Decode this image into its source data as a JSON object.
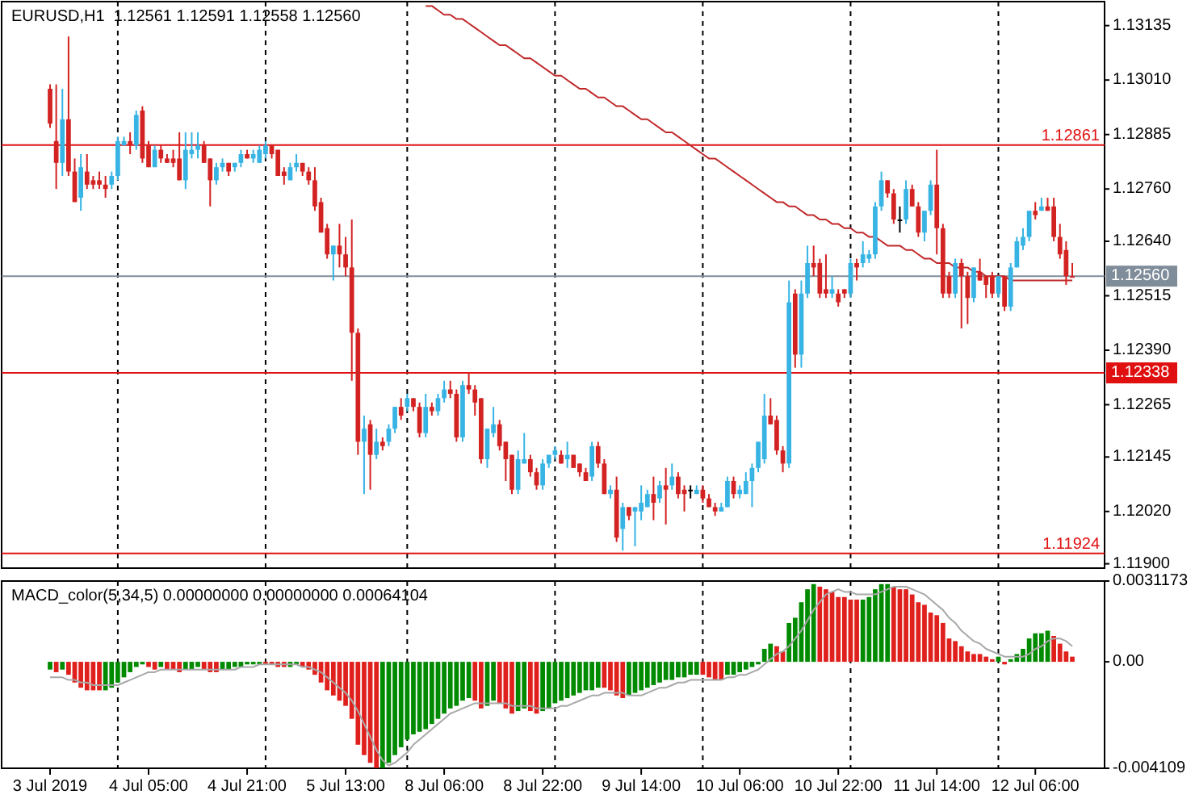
{
  "chart_data": [
    {
      "type": "candlestick",
      "title": "EURUSD,H1  1.12561 1.12591 1.12558 1.12560",
      "tick_labels": "y",
      "categories": [
        null,
        null,
        null,
        null,
        null,
        null,
        null,
        null,
        null,
        null,
        null,
        null,
        null,
        null,
        null,
        null,
        null,
        null,
        null,
        null,
        null,
        null,
        null,
        null,
        null,
        null,
        null,
        null,
        null,
        null,
        null,
        null,
        null,
        null,
        null,
        null,
        null,
        null,
        null,
        null,
        null,
        null,
        null,
        null,
        null,
        null,
        null,
        null,
        null,
        null,
        null,
        null,
        null,
        null,
        null,
        null,
        null,
        null,
        null,
        null,
        null,
        null,
        null,
        null,
        null,
        null,
        null,
        null,
        null,
        null,
        null,
        null,
        null,
        null,
        null,
        null,
        null,
        null,
        null,
        null,
        null,
        null,
        null,
        null,
        null,
        null,
        null,
        null,
        null,
        null,
        null,
        null,
        null,
        null,
        null,
        null,
        null,
        null,
        null,
        null,
        null,
        null,
        null,
        null,
        null,
        null,
        null,
        null,
        null,
        null,
        null,
        null,
        null,
        null,
        null,
        null,
        null,
        null,
        null,
        null,
        null,
        null,
        null,
        null,
        null,
        null,
        null,
        null,
        null,
        null,
        null,
        null,
        null,
        null,
        null,
        null,
        null,
        null,
        null,
        null,
        null,
        null,
        null,
        null,
        null,
        null,
        null,
        null,
        null,
        null,
        null,
        null,
        null,
        null,
        null,
        null,
        null,
        null,
        null,
        null,
        null,
        null,
        null,
        null,
        null,
        null,
        null
      ],
      "ohlc": [
        [
          1.1299,
          1.13,
          1.129,
          1.1291
        ],
        [
          1.1287,
          1.13,
          1.1276,
          1.1282
        ],
        [
          1.1282,
          1.1299,
          1.1279,
          1.1292
        ],
        [
          1.1292,
          1.1311,
          1.1279,
          1.128
        ],
        [
          1.128,
          1.1283,
          1.1273,
          1.1273
        ],
        [
          1.1274,
          1.1284,
          1.1271,
          1.1281
        ],
        [
          1.128,
          1.1284,
          1.1276,
          1.1277
        ],
        [
          1.1278,
          1.1279,
          1.1276,
          1.1277
        ],
        [
          1.1278,
          1.128,
          1.1276,
          1.1277
        ],
        [
          1.1277,
          1.1279,
          1.1274,
          1.1276
        ],
        [
          1.1277,
          1.128,
          1.1276,
          1.1279
        ],
        [
          1.1279,
          1.1288,
          1.1278,
          1.1287
        ],
        [
          1.1286,
          1.1288,
          1.1286,
          1.1287
        ],
        [
          1.1287,
          1.1289,
          1.1284,
          1.1286
        ],
        [
          1.1286,
          1.1294,
          1.1285,
          1.1293
        ],
        [
          1.1294,
          1.1295,
          1.1282,
          1.1283
        ],
        [
          1.1286,
          1.1287,
          1.1281,
          1.1281
        ],
        [
          1.1281,
          1.1286,
          1.1281,
          1.1285
        ],
        [
          1.1285,
          1.1286,
          1.1282,
          1.1283
        ],
        [
          1.1283,
          1.1284,
          1.1282,
          1.1282
        ],
        [
          1.1283,
          1.1285,
          1.1281,
          1.1282
        ],
        [
          1.1283,
          1.1289,
          1.1278,
          1.1278
        ],
        [
          1.1278,
          1.1289,
          1.1276,
          1.1285
        ],
        [
          1.1284,
          1.1289,
          1.1283,
          1.1285
        ],
        [
          1.1285,
          1.1289,
          1.1283,
          1.1286
        ],
        [
          1.1286,
          1.1287,
          1.1282,
          1.1282
        ],
        [
          1.1283,
          1.1283,
          1.1272,
          1.1278
        ],
        [
          1.1278,
          1.1282,
          1.1277,
          1.1281
        ],
        [
          1.1281,
          1.1283,
          1.128,
          1.1282
        ],
        [
          1.1282,
          1.1282,
          1.1279,
          1.128
        ],
        [
          1.1281,
          1.1282,
          1.128,
          1.1282
        ],
        [
          1.1282,
          1.1285,
          1.1281,
          1.1284
        ],
        [
          1.1284,
          1.1285,
          1.1283,
          1.1283
        ],
        [
          1.1283,
          1.1285,
          1.1282,
          1.1284
        ],
        [
          1.1282,
          1.1286,
          1.1282,
          1.1285
        ],
        [
          1.1284,
          1.1287,
          1.1283,
          1.1286
        ],
        [
          1.1286,
          1.1286,
          1.1283,
          1.1284
        ],
        [
          1.1285,
          1.1285,
          1.1279,
          1.1279
        ],
        [
          1.128,
          1.1281,
          1.1277,
          1.1279
        ],
        [
          1.1278,
          1.1282,
          1.1278,
          1.1281
        ],
        [
          1.1281,
          1.1284,
          1.128,
          1.1282
        ],
        [
          1.1282,
          1.1282,
          1.1279,
          1.128
        ],
        [
          1.128,
          1.1281,
          1.1277,
          1.1278
        ],
        [
          1.1278,
          1.1281,
          1.1271,
          1.1272
        ],
        [
          1.1273,
          1.1274,
          1.1266,
          1.1266
        ],
        [
          1.1267,
          1.1268,
          1.126,
          1.1261
        ],
        [
          1.1261,
          1.1263,
          1.1255,
          1.1263
        ],
        [
          1.1263,
          1.1268,
          1.1258,
          1.1261
        ],
        [
          1.1261,
          1.1265,
          1.1256,
          1.1258
        ],
        [
          1.1258,
          1.1269,
          1.1232,
          1.1243
        ],
        [
          1.1243,
          1.1244,
          1.1215,
          1.1218
        ],
        [
          1.1218,
          1.1224,
          1.1206,
          1.1221
        ],
        [
          1.1222,
          1.1223,
          1.1207,
          1.1215
        ],
        [
          1.1215,
          1.1221,
          1.1214,
          1.1218
        ],
        [
          1.1218,
          1.1219,
          1.1216,
          1.1217
        ],
        [
          1.1218,
          1.1222,
          1.1217,
          1.1221
        ],
        [
          1.1221,
          1.1226,
          1.122,
          1.1226
        ],
        [
          1.1226,
          1.1228,
          1.1223,
          1.1224
        ],
        [
          1.1226,
          1.1229,
          1.1225,
          1.1228
        ],
        [
          1.1228,
          1.1228,
          1.1225,
          1.1226
        ],
        [
          1.1226,
          1.1227,
          1.1219,
          1.122
        ],
        [
          1.122,
          1.1229,
          1.1219,
          1.1226
        ],
        [
          1.1226,
          1.1227,
          1.1224,
          1.1225
        ],
        [
          1.1225,
          1.1229,
          1.1224,
          1.1228
        ],
        [
          1.1228,
          1.1232,
          1.1227,
          1.123
        ],
        [
          1.123,
          1.1232,
          1.1228,
          1.1229
        ],
        [
          1.1229,
          1.123,
          1.1218,
          1.1219
        ],
        [
          1.1219,
          1.1232,
          1.1218,
          1.1231
        ],
        [
          1.1231,
          1.1234,
          1.1229,
          1.123
        ],
        [
          1.123,
          1.1231,
          1.1224,
          1.1227
        ],
        [
          1.1228,
          1.1228,
          1.1213,
          1.1214
        ],
        [
          1.1214,
          1.1221,
          1.1212,
          1.1221
        ],
        [
          1.122,
          1.1226,
          1.1219,
          1.1222
        ],
        [
          1.1222,
          1.1223,
          1.1216,
          1.1217
        ],
        [
          1.1218,
          1.1218,
          1.1209,
          1.1214
        ],
        [
          1.1215,
          1.1215,
          1.1206,
          1.1207
        ],
        [
          1.1207,
          1.1216,
          1.1206,
          1.1214
        ],
        [
          1.1213,
          1.122,
          1.1213,
          1.1214
        ],
        [
          1.1214,
          1.1215,
          1.121,
          1.1211
        ],
        [
          1.1211,
          1.1212,
          1.1207,
          1.1208
        ],
        [
          1.1208,
          1.1214,
          1.1207,
          1.1213
        ],
        [
          1.1213,
          1.1215,
          1.1212,
          1.1215
        ],
        [
          1.1215,
          1.1217,
          1.1214,
          1.1216
        ],
        [
          1.1215,
          1.1216,
          1.1213,
          1.1213
        ],
        [
          1.1214,
          1.1218,
          1.1212,
          1.1215
        ],
        [
          1.1215,
          1.1215,
          1.1212,
          1.1212
        ],
        [
          1.1213,
          1.1213,
          1.121,
          1.1211
        ],
        [
          1.1211,
          1.1212,
          1.1209,
          1.1209
        ],
        [
          1.121,
          1.1218,
          1.1209,
          1.1217
        ],
        [
          1.1217,
          1.1218,
          1.1212,
          1.1213
        ],
        [
          1.1213,
          1.1214,
          1.1206,
          1.1206
        ],
        [
          1.1206,
          1.1208,
          1.1205,
          1.1207
        ],
        [
          1.1207,
          1.121,
          1.1195,
          1.1196
        ],
        [
          1.1198,
          1.1204,
          1.1193,
          1.1203
        ],
        [
          1.1203,
          1.1203,
          1.12,
          1.1201
        ],
        [
          1.1202,
          1.1203,
          1.1194,
          1.1203
        ],
        [
          1.1202,
          1.1208,
          1.12,
          1.1204
        ],
        [
          1.1203,
          1.1207,
          1.1203,
          1.1206
        ],
        [
          1.1206,
          1.121,
          1.12,
          1.1204
        ],
        [
          1.1205,
          1.1209,
          1.1204,
          1.1208
        ],
        [
          1.1208,
          1.1212,
          1.1199,
          1.1207
        ],
        [
          1.1208,
          1.1213,
          1.1207,
          1.121
        ],
        [
          1.121,
          1.1211,
          1.1205,
          1.1206
        ],
        [
          1.1207,
          1.1208,
          1.1202,
          1.1206
        ],
        [
          1.1207,
          1.1208,
          1.1205,
          1.1207
        ],
        [
          1.1206,
          1.1208,
          1.1206,
          1.1207
        ],
        [
          1.1207,
          1.1208,
          1.1204,
          1.1205
        ],
        [
          1.1205,
          1.1206,
          1.1203,
          1.1203
        ],
        [
          1.1203,
          1.1204,
          1.1201,
          1.1202
        ],
        [
          1.1202,
          1.1204,
          1.1202,
          1.1203
        ],
        [
          1.1203,
          1.121,
          1.1203,
          1.1209
        ],
        [
          1.1209,
          1.121,
          1.1205,
          1.1206
        ],
        [
          1.1206,
          1.1208,
          1.1205,
          1.1207
        ],
        [
          1.1206,
          1.1211,
          1.1206,
          1.1209
        ],
        [
          1.1209,
          1.1213,
          1.1203,
          1.1212
        ],
        [
          1.1212,
          1.1218,
          1.1211,
          1.1218
        ],
        [
          1.1214,
          1.1229,
          1.1213,
          1.1224
        ],
        [
          1.1224,
          1.1228,
          1.1222,
          1.1222
        ],
        [
          1.1223,
          1.1224,
          1.1215,
          1.1216
        ],
        [
          1.1216,
          1.1217,
          1.1211,
          1.1213
        ],
        [
          1.1213,
          1.1255,
          1.1212,
          1.125
        ],
        [
          1.1252,
          1.1253,
          1.1235,
          1.1238
        ],
        [
          1.1238,
          1.1255,
          1.1235,
          1.1252
        ],
        [
          1.1252,
          1.1263,
          1.1251,
          1.1259
        ],
        [
          1.1259,
          1.1263,
          1.1256,
          1.1258
        ],
        [
          1.1259,
          1.126,
          1.1251,
          1.1252
        ],
        [
          1.1253,
          1.1261,
          1.1251,
          1.1252
        ],
        [
          1.1252,
          1.1256,
          1.1251,
          1.1253
        ],
        [
          1.1252,
          1.1253,
          1.1249,
          1.125
        ],
        [
          1.1253,
          1.1253,
          1.1251,
          1.1252
        ],
        [
          1.1252,
          1.126,
          1.1251,
          1.1259
        ],
        [
          1.1259,
          1.126,
          1.1255,
          1.1258
        ],
        [
          1.1259,
          1.1264,
          1.1258,
          1.1261
        ],
        [
          1.126,
          1.1262,
          1.1259,
          1.1261
        ],
        [
          1.1261,
          1.1273,
          1.126,
          1.1272
        ],
        [
          1.1272,
          1.128,
          1.1271,
          1.1278
        ],
        [
          1.1278,
          1.1278,
          1.1274,
          1.1275
        ],
        [
          1.1275,
          1.1276,
          1.1268,
          1.1269
        ],
        [
          1.1269,
          1.1272,
          1.1266,
          1.1269
        ],
        [
          1.1269,
          1.1278,
          1.1268,
          1.1276
        ],
        [
          1.1276,
          1.1277,
          1.1272,
          1.1272
        ],
        [
          1.1272,
          1.1273,
          1.1265,
          1.1266
        ],
        [
          1.1266,
          1.1271,
          1.1264,
          1.1271
        ],
        [
          1.1271,
          1.1278,
          1.127,
          1.1277
        ],
        [
          1.1277,
          1.1285,
          1.1261,
          1.1267
        ],
        [
          1.1267,
          1.1268,
          1.1251,
          1.1252
        ],
        [
          1.1256,
          1.1257,
          1.1251,
          1.1252
        ],
        [
          1.1252,
          1.126,
          1.1251,
          1.1259
        ],
        [
          1.1259,
          1.126,
          1.1244,
          1.1256
        ],
        [
          1.1256,
          1.1257,
          1.1245,
          1.1251
        ],
        [
          1.1251,
          1.1258,
          1.125,
          1.1258
        ],
        [
          1.1257,
          1.126,
          1.1255,
          1.1255
        ],
        [
          1.1256,
          1.1256,
          1.1251,
          1.1254
        ],
        [
          1.1256,
          1.1257,
          1.1251,
          1.1252
        ],
        [
          1.1252,
          1.1256,
          1.1251,
          1.1256
        ],
        [
          1.1256,
          1.1256,
          1.1248,
          1.1249
        ],
        [
          1.1249,
          1.1259,
          1.1248,
          1.1258
        ],
        [
          1.1258,
          1.1265,
          1.1258,
          1.1264
        ],
        [
          1.1263,
          1.1267,
          1.1262,
          1.1265
        ],
        [
          1.1265,
          1.1271,
          1.1264,
          1.1271
        ],
        [
          1.1271,
          1.1273,
          1.1269,
          1.127
        ],
        [
          1.1271,
          1.1274,
          1.1271,
          1.1272
        ],
        [
          1.1272,
          1.1274,
          1.1271,
          1.1271
        ],
        [
          1.1272,
          1.1274,
          1.1264,
          1.1265
        ],
        [
          1.1265,
          1.1268,
          1.126,
          1.1261
        ],
        [
          1.1262,
          1.1264,
          1.1254,
          1.1256
        ],
        [
          1.1256,
          1.1259,
          1.1256,
          1.1256
        ]
      ],
      "colors": [
        "#d32222",
        "#d32222",
        "#37b4e4",
        "#d32222",
        "#d32222",
        "#37b4e4",
        "#d32222",
        "#d32222",
        "#d32222",
        "#d32222",
        "#37b4e4",
        "#37b4e4",
        "#37b4e4",
        "#d32222",
        "#37b4e4",
        "#d32222",
        "#d32222",
        "#37b4e4",
        "#d32222",
        "#d32222",
        "#d32222",
        "#d32222",
        "#37b4e4",
        "#37b4e4",
        "#37b4e4",
        "#d32222",
        "#d32222",
        "#37b4e4",
        "#37b4e4",
        "#d32222",
        "#37b4e4",
        "#37b4e4",
        "#d32222",
        "#37b4e4",
        "#37b4e4",
        "#37b4e4",
        "#d32222",
        "#d32222",
        "#d32222",
        "#37b4e4",
        "#37b4e4",
        "#d32222",
        "#d32222",
        "#d32222",
        "#d32222",
        "#d32222",
        "#37b4e4",
        "#d32222",
        "#d32222",
        "#d32222",
        "#d32222",
        "#37b4e4",
        "#d32222",
        "#37b4e4",
        "#d32222",
        "#37b4e4",
        "#37b4e4",
        "#d32222",
        "#37b4e4",
        "#d32222",
        "#d32222",
        "#37b4e4",
        "#d32222",
        "#37b4e4",
        "#37b4e4",
        "#d32222",
        "#d32222",
        "#37b4e4",
        "#d32222",
        "#d32222",
        "#d32222",
        "#37b4e4",
        "#37b4e4",
        "#d32222",
        "#d32222",
        "#d32222",
        "#37b4e4",
        "#37b4e4",
        "#d32222",
        "#d32222",
        "#37b4e4",
        "#37b4e4",
        "#37b4e4",
        "#d32222",
        "#37b4e4",
        "#d32222",
        "#d32222",
        "#d32222",
        "#37b4e4",
        "#d32222",
        "#d32222",
        "#37b4e4",
        "#d32222",
        "#37b4e4",
        "#d32222",
        "#37b4e4",
        "#37b4e4",
        "#37b4e4",
        "#d32222",
        "#37b4e4",
        "#d32222",
        "#37b4e4",
        "#d32222",
        "#d32222",
        "#000000",
        "#37b4e4",
        "#d32222",
        "#d32222",
        "#d32222",
        "#37b4e4",
        "#37b4e4",
        "#d32222",
        "#37b4e4",
        "#37b4e4",
        "#37b4e4",
        "#37b4e4",
        "#37b4e4",
        "#d32222",
        "#d32222",
        "#d32222",
        "#37b4e4",
        "#d32222",
        "#37b4e4",
        "#37b4e4",
        "#d32222",
        "#d32222",
        "#d32222",
        "#37b4e4",
        "#d32222",
        "#d32222",
        "#37b4e4",
        "#d32222",
        "#37b4e4",
        "#37b4e4",
        "#37b4e4",
        "#37b4e4",
        "#d32222",
        "#d32222",
        "#000000",
        "#37b4e4",
        "#d32222",
        "#d32222",
        "#37b4e4",
        "#37b4e4",
        "#d32222",
        "#d32222",
        "#d32222",
        "#37b4e4",
        "#d32222",
        "#d32222",
        "#37b4e4",
        "#d32222",
        "#d32222",
        "#d32222",
        "#37b4e4",
        "#d32222",
        "#37b4e4",
        "#37b4e4",
        "#37b4e4",
        "#37b4e4",
        "#d32222",
        "#37b4e4",
        "#d32222",
        "#d32222",
        "#d32222",
        "#d32222",
        "#d32222"
      ],
      "series": [
        {
          "type": "line",
          "color": "#c0282a",
          "values": [
            null,
            null,
            null,
            null,
            null,
            null,
            null,
            null,
            null,
            null,
            null,
            null,
            null,
            null,
            null,
            null,
            null,
            null,
            null,
            null,
            null,
            null,
            null,
            null,
            null,
            null,
            null,
            null,
            null,
            null,
            null,
            null,
            null,
            null,
            null,
            null,
            null,
            null,
            null,
            null,
            null,
            null,
            null,
            null,
            null,
            null,
            null,
            null,
            null,
            null,
            null,
            null,
            null,
            null,
            null,
            null,
            null,
            null,
            null,
            null,
            null,
            1.1318,
            1.1318,
            1.1317,
            1.1316,
            1.1316,
            1.1315,
            1.1315,
            1.1314,
            1.1313,
            1.1312,
            1.1311,
            1.131,
            1.1309,
            1.1309,
            1.1308,
            1.1307,
            1.1306,
            1.1306,
            1.1305,
            1.1304,
            1.1303,
            1.1302,
            1.1302,
            1.1301,
            1.13,
            1.1299,
            1.1299,
            1.1298,
            1.1297,
            1.1297,
            1.1296,
            1.1295,
            1.1295,
            1.1294,
            1.1293,
            1.1292,
            1.1292,
            1.1291,
            1.129,
            1.1289,
            1.1289,
            1.1288,
            1.1287,
            1.1286,
            1.1285,
            1.1284,
            1.1283,
            1.1283,
            1.1282,
            1.1281,
            1.128,
            1.1279,
            1.1278,
            1.1277,
            1.1276,
            1.1275,
            1.1274,
            1.1273,
            1.1273,
            1.1272,
            1.1272,
            1.1271,
            1.127,
            1.127,
            1.1269,
            1.1269,
            1.1268,
            1.1268,
            1.1267,
            1.1267,
            1.1266,
            1.1266,
            1.1265,
            1.1265,
            1.1264,
            1.1263,
            1.1263,
            1.1263,
            1.1262,
            1.1262,
            1.1261,
            1.126,
            1.126,
            1.1259,
            1.1259,
            1.1259,
            1.1258,
            1.1258,
            1.1258,
            1.1257,
            1.1257,
            1.1256,
            1.1256,
            1.1256,
            1.1256,
            1.1255,
            1.1255,
            1.1255,
            1.1255,
            1.1255,
            1.1255,
            1.1255,
            1.1255,
            1.1255,
            1.1255,
            1.1255
          ]
        }
      ],
      "ylim": [
        1.1189,
        1.1319
      ],
      "yticks": [
        1.13135,
        {
          "value": 1.1301,
          "label": "1.13010"
        },
        1.12885,
        {
          "value": 1.1276,
          "label": "1.12760"
        },
        {
          "value": 1.1264,
          "label": "1.12640"
        },
        1.12515,
        {
          "value": 1.1239,
          "label": "1.12390"
        },
        1.12265,
        1.12145,
        {
          "value": 1.1202,
          "label": "1.12020"
        },
        {
          "value": 1.119,
          "label": "1.11900"
        }
      ],
      "ref_lines": [
        {
          "axis": "y",
          "value": 1.12861,
          "label": "1.12861",
          "color": "#e01010"
        },
        {
          "axis": "y",
          "value": 1.12338,
          "label": "1.12338",
          "color": "#e01010"
        },
        {
          "axis": "y",
          "value": 1.11924,
          "label": "1.11924",
          "color": "#e01010"
        },
        {
          "axis": "y",
          "value": 1.1256,
          "label": "1.12560",
          "color": "#7f8c99"
        }
      ]
    },
    {
      "type": "bar",
      "title": "MACD_color(5,34,5) 0.00000000 0.00000000 0.00064104",
      "categories": [
        "3 Jul 2019",
        null,
        null,
        null,
        null,
        null,
        null,
        null,
        null,
        null,
        null,
        null,
        null,
        null,
        null,
        null,
        "4 Jul 05:00",
        null,
        null,
        null,
        null,
        null,
        null,
        null,
        null,
        null,
        null,
        null,
        null,
        null,
        null,
        null,
        "4 Jul 21:00",
        null,
        null,
        null,
        null,
        null,
        null,
        null,
        null,
        null,
        null,
        null,
        null,
        null,
        null,
        null,
        "5 Jul 13:00",
        null,
        null,
        null,
        null,
        null,
        null,
        null,
        null,
        null,
        null,
        null,
        null,
        null,
        null,
        null,
        "8 Jul 06:00",
        null,
        null,
        null,
        null,
        null,
        null,
        null,
        null,
        null,
        null,
        null,
        null,
        null,
        null,
        null,
        "8 Jul 22:00",
        null,
        null,
        null,
        null,
        null,
        null,
        null,
        null,
        null,
        null,
        null,
        null,
        null,
        null,
        null,
        "9 Jul 14:00",
        null,
        null,
        null,
        null,
        null,
        null,
        null,
        null,
        null,
        null,
        null,
        null,
        null,
        null,
        null,
        "10 Jul 06:00",
        null,
        null,
        null,
        null,
        null,
        null,
        null,
        null,
        null,
        null,
        null,
        null,
        null,
        null,
        null,
        "10 Jul 22:00",
        null,
        null,
        null,
        null,
        null,
        null,
        null,
        null,
        null,
        null,
        null,
        null,
        null,
        null,
        null,
        "11 Jul 14:00",
        null,
        null,
        null,
        null,
        null,
        null,
        null,
        null,
        null,
        null,
        null,
        null,
        null,
        null,
        null,
        "12 Jul 06:00",
        null,
        null,
        null,
        null,
        null,
        null
      ],
      "series": [
        {
          "type": "bar",
          "values": [
            -0.0003,
            -0.0004,
            -0.0003,
            -0.0005,
            -0.0008,
            -0.001,
            -0.0011,
            -0.0011,
            -0.0011,
            -0.0011,
            -0.001,
            -0.0008,
            -0.0006,
            -0.0004,
            -0.0002,
            -0.0001,
            -0.0002,
            -0.0003,
            -0.0002,
            -0.0003,
            -0.0003,
            -0.0004,
            -0.0003,
            -0.0003,
            -0.0002,
            -0.0003,
            -0.0004,
            -0.0004,
            -0.0003,
            -0.0003,
            -0.0002,
            -0.0002,
            -0.0001,
            -0.0001,
            -0.0001,
            -0.0001,
            -0.0001,
            -0.0002,
            -0.0002,
            -0.0002,
            -0.0001,
            -0.0002,
            -0.0003,
            -0.0005,
            -0.0008,
            -0.0011,
            -0.0013,
            -0.0015,
            -0.0017,
            -0.0022,
            -0.0032,
            -0.0036,
            -0.0039,
            -0.0041,
            -0.0041,
            -0.0039,
            -0.0036,
            -0.0033,
            -0.003,
            -0.0028,
            -0.0027,
            -0.0026,
            -0.0024,
            -0.0022,
            -0.002,
            -0.0018,
            -0.0017,
            -0.0015,
            -0.0014,
            -0.0015,
            -0.0018,
            -0.0017,
            -0.0015,
            -0.0016,
            -0.0018,
            -0.002,
            -0.0019,
            -0.0018,
            -0.0019,
            -0.002,
            -0.0019,
            -0.0018,
            -0.0016,
            -0.0015,
            -0.0014,
            -0.0013,
            -0.0012,
            -0.0011,
            -0.0011,
            -0.001,
            -0.001,
            -0.0011,
            -0.0013,
            -0.0014,
            -0.0013,
            -0.0012,
            -0.0011,
            -0.001,
            -0.0009,
            -0.0008,
            -0.0007,
            -0.0007,
            -0.0006,
            -0.0006,
            -0.0005,
            -0.0005,
            -0.0005,
            -0.0006,
            -0.0007,
            -0.0007,
            -0.0005,
            -0.0005,
            -0.0004,
            -0.0003,
            -0.0002,
            -0.0001,
            0.0005,
            0.0007,
            0.0006,
            0.0004,
            0.0015,
            0.0017,
            0.0023,
            0.0028,
            0.003,
            0.0029,
            0.0028,
            0.0027,
            0.0025,
            0.0025,
            0.0024,
            0.0024,
            0.0024,
            0.0025,
            0.0028,
            0.003,
            0.003,
            0.0029,
            0.0028,
            0.0028,
            0.0026,
            0.0023,
            0.0022,
            0.0019,
            0.0018,
            0.0015,
            0.0009,
            0.0008,
            0.0006,
            0.0004,
            0.0003,
            0.0003,
            0.0002,
            0.0001,
            0.0002,
            -0.0001,
            0.0001,
            0.0003,
            0.0005,
            0.0009,
            0.0011,
            0.0011,
            0.0012,
            0.001,
            0.0007,
            0.0004,
            0.0002
          ],
          "colors": [
            "#008a00",
            "#e0201c",
            "#008a00",
            "#e0201c",
            "#e0201c",
            "#e0201c",
            "#e0201c",
            "#e0201c",
            "#e0201c",
            "#008a00",
            "#008a00",
            "#008a00",
            "#008a00",
            "#008a00",
            "#008a00",
            "#008a00",
            "#e0201c",
            "#e0201c",
            "#008a00",
            "#e0201c",
            "#e0201c",
            "#e0201c",
            "#008a00",
            "#008a00",
            "#008a00",
            "#e0201c",
            "#e0201c",
            "#e0201c",
            "#008a00",
            "#008a00",
            "#008a00",
            "#008a00",
            "#008a00",
            "#008a00",
            "#008a00",
            "#e0201c",
            "#e0201c",
            "#e0201c",
            "#e0201c",
            "#008a00",
            "#008a00",
            "#e0201c",
            "#e0201c",
            "#e0201c",
            "#e0201c",
            "#e0201c",
            "#e0201c",
            "#e0201c",
            "#e0201c",
            "#e0201c",
            "#e0201c",
            "#e0201c",
            "#e0201c",
            "#e0201c",
            "#008a00",
            "#008a00",
            "#008a00",
            "#008a00",
            "#008a00",
            "#008a00",
            "#008a00",
            "#008a00",
            "#008a00",
            "#008a00",
            "#008a00",
            "#008a00",
            "#008a00",
            "#008a00",
            "#008a00",
            "#e0201c",
            "#e0201c",
            "#008a00",
            "#008a00",
            "#e0201c",
            "#e0201c",
            "#e0201c",
            "#008a00",
            "#008a00",
            "#e0201c",
            "#e0201c",
            "#008a00",
            "#008a00",
            "#008a00",
            "#008a00",
            "#008a00",
            "#008a00",
            "#008a00",
            "#008a00",
            "#008a00",
            "#008a00",
            "#e0201c",
            "#e0201c",
            "#e0201c",
            "#e0201c",
            "#008a00",
            "#008a00",
            "#008a00",
            "#008a00",
            "#008a00",
            "#008a00",
            "#008a00",
            "#008a00",
            "#008a00",
            "#008a00",
            "#008a00",
            "#008a00",
            "#e0201c",
            "#e0201c",
            "#e0201c",
            "#e0201c",
            "#008a00",
            "#008a00",
            "#008a00",
            "#008a00",
            "#008a00",
            "#008a00",
            "#008a00",
            "#008a00",
            "#e0201c",
            "#e0201c",
            "#008a00",
            "#008a00",
            "#008a00",
            "#008a00",
            "#008a00",
            "#e0201c",
            "#e0201c",
            "#e0201c",
            "#e0201c",
            "#e0201c",
            "#e0201c",
            "#e0201c",
            "#008a00",
            "#008a00",
            "#008a00",
            "#008a00",
            "#008a00",
            "#e0201c",
            "#e0201c",
            "#e0201c",
            "#e0201c",
            "#e0201c",
            "#e0201c",
            "#e0201c",
            "#e0201c",
            "#e0201c",
            "#e0201c",
            "#e0201c",
            "#e0201c",
            "#e0201c",
            "#e0201c",
            "#e0201c",
            "#e0201c",
            "#e0201c",
            "#008a00",
            "#e0201c",
            "#008a00",
            "#008a00",
            "#008a00",
            "#008a00",
            "#008a00",
            "#008a00",
            "#008a00",
            "#e0201c",
            "#e0201c",
            "#e0201c",
            "#e0201c"
          ]
        },
        {
          "type": "line",
          "color": "#a8a8a8",
          "values": [
            -0.0006,
            -0.0006,
            -0.0006,
            -0.0007,
            -0.0007,
            -0.0008,
            -0.0008,
            -0.0009,
            -0.0009,
            -0.0009,
            -0.0009,
            -0.0009,
            -0.0008,
            -0.0007,
            -0.0006,
            -0.0005,
            -0.0004,
            -0.0004,
            -0.0003,
            -0.0003,
            -0.0003,
            -0.0003,
            -0.0003,
            -0.0003,
            -0.0003,
            -0.0003,
            -0.0003,
            -0.0003,
            -0.0003,
            -0.0003,
            -0.0003,
            -0.0002,
            -0.0002,
            -0.0002,
            -0.0001,
            -0.0001,
            -0.0001,
            -0.0001,
            -0.0001,
            -0.0001,
            -0.0001,
            -0.0002,
            -0.0002,
            -0.0003,
            -0.0004,
            -0.0006,
            -0.0008,
            -0.001,
            -0.0012,
            -0.0015,
            -0.0019,
            -0.0024,
            -0.0029,
            -0.0034,
            -0.0038,
            -0.004,
            -0.0039,
            -0.0037,
            -0.0035,
            -0.0032,
            -0.003,
            -0.0028,
            -0.0026,
            -0.0024,
            -0.0022,
            -0.002,
            -0.0019,
            -0.0018,
            -0.0017,
            -0.0016,
            -0.0016,
            -0.0016,
            -0.0016,
            -0.0016,
            -0.0016,
            -0.0017,
            -0.0017,
            -0.0017,
            -0.0017,
            -0.0018,
            -0.0018,
            -0.0018,
            -0.0018,
            -0.0017,
            -0.0017,
            -0.0016,
            -0.0015,
            -0.0014,
            -0.0013,
            -0.0013,
            -0.0012,
            -0.0012,
            -0.0012,
            -0.0012,
            -0.0013,
            -0.0013,
            -0.0013,
            -0.0012,
            -0.0011,
            -0.001,
            -0.001,
            -0.0009,
            -0.0008,
            -0.0008,
            -0.0007,
            -0.0007,
            -0.0007,
            -0.0007,
            -0.0007,
            -0.0007,
            -0.0006,
            -0.0006,
            -0.0005,
            -0.0005,
            -0.0004,
            -0.0003,
            -0.0001,
            0.0001,
            0.0003,
            0.0004,
            0.0006,
            0.0009,
            0.0012,
            0.0016,
            0.002,
            0.0023,
            0.0026,
            0.0027,
            0.0028,
            0.0027,
            0.0027,
            0.0026,
            0.0026,
            0.0026,
            0.0026,
            0.0027,
            0.0028,
            0.0029,
            0.0029,
            0.0029,
            0.0028,
            0.0027,
            0.0026,
            0.0024,
            0.0022,
            0.002,
            0.0017,
            0.0015,
            0.0012,
            0.001,
            0.0008,
            0.0007,
            0.0005,
            0.0004,
            0.0003,
            0.0002,
            0.0002,
            0.0002,
            0.0002,
            0.0003,
            0.0005,
            0.0006,
            0.0008,
            0.0009,
            0.0009,
            0.0008,
            0.0006
          ]
        }
      ],
      "ylim": [
        -0.004109,
        0.0031173
      ],
      "yticks": [
        0.0031173,
        {
          "value": 0,
          "label": "0.00"
        },
        -0.004109
      ]
    }
  ]
}
